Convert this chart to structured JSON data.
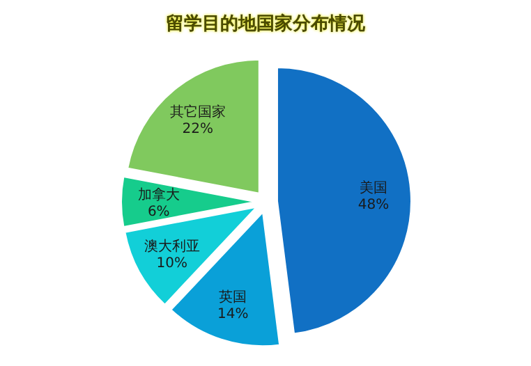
{
  "chart_data": {
    "type": "pie",
    "title": "留学目的地国家分布情况",
    "categories": [
      "美国",
      "英国",
      "澳大利亚",
      "加拿大",
      "其它国家"
    ],
    "values": [
      48,
      14,
      10,
      6,
      22
    ],
    "colors": [
      "#1170c4",
      "#0aa0d8",
      "#12cfd8",
      "#16cc8c",
      "#80c95e"
    ],
    "value_labels": [
      "48%",
      "14%",
      "10%",
      "6%",
      "22%"
    ],
    "legend": false
  }
}
